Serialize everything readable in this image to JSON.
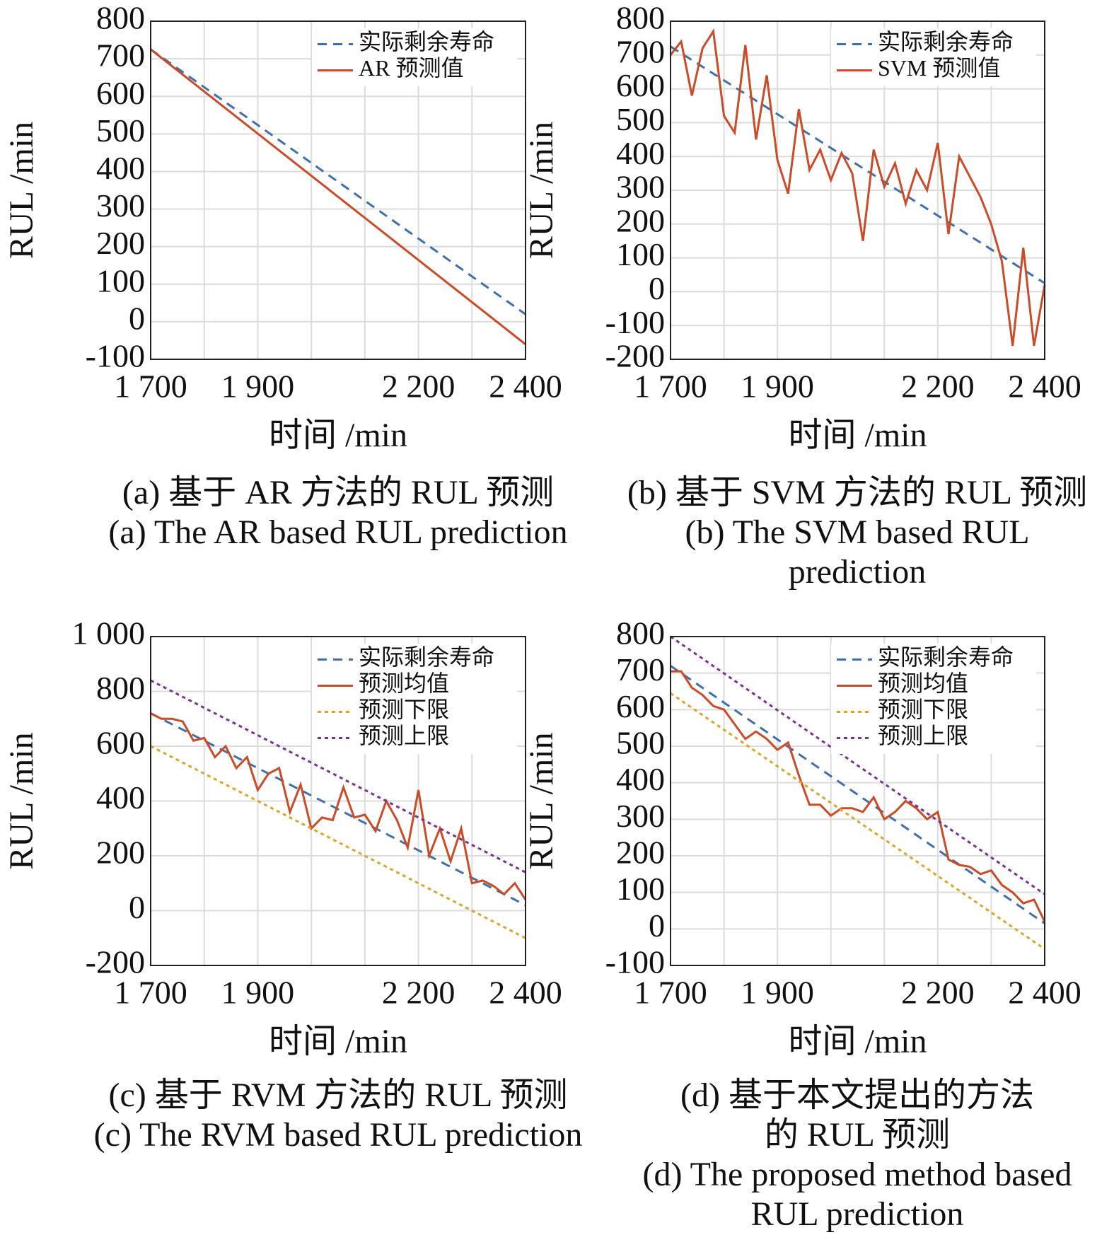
{
  "chart_data": [
    {
      "type": "line",
      "ylabel": "RUL /min",
      "xlabel": "时间 /min",
      "caption": [
        "(a) 基于 AR 方法的 RUL 预测",
        "(a) The AR based RUL prediction"
      ],
      "xlim": [
        1700,
        2400
      ],
      "xticks": [
        {
          "value": 1700,
          "label": "1 700"
        },
        {
          "value": 1900,
          "label": "1 900"
        },
        {
          "value": 2200,
          "label": "2 200"
        },
        {
          "value": 2400,
          "label": "2 400"
        }
      ],
      "xminor": [
        1800,
        2000,
        2100,
        2300
      ],
      "ylim": [
        -100,
        800
      ],
      "yticks": [
        -100,
        0,
        100,
        200,
        300,
        400,
        500,
        600,
        700,
        800
      ],
      "grid": true,
      "legend": "upper right",
      "series": [
        {
          "name": "实际剩余寿命",
          "color": "#3f6fae",
          "dash": "dashed",
          "x": [
            1700,
            2400
          ],
          "values": [
            725,
            20
          ]
        },
        {
          "name": "AR 预测值",
          "color": "#cc4a26",
          "dash": "solid",
          "x": [
            1700,
            2400
          ],
          "values": [
            725,
            -60
          ]
        }
      ]
    },
    {
      "type": "line",
      "ylabel": "RUL /min",
      "xlabel": "时间 /min",
      "caption": [
        "(b) 基于 SVM 方法的 RUL 预测",
        "(b) The SVM based RUL",
        "prediction"
      ],
      "xlim": [
        1700,
        2400
      ],
      "xticks": [
        {
          "value": 1700,
          "label": "1 700"
        },
        {
          "value": 1900,
          "label": "1 900"
        },
        {
          "value": 2200,
          "label": "2 200"
        },
        {
          "value": 2400,
          "label": "2 400"
        }
      ],
      "xminor": [
        1800,
        2000,
        2100,
        2300
      ],
      "ylim": [
        -200,
        800
      ],
      "yticks": [
        -200,
        -100,
        0,
        100,
        200,
        300,
        400,
        500,
        600,
        700,
        800
      ],
      "grid": true,
      "legend": "upper right",
      "series": [
        {
          "name": "实际剩余寿命",
          "color": "#3f6fae",
          "dash": "dashed",
          "x": [
            1700,
            2400
          ],
          "values": [
            725,
            25
          ]
        },
        {
          "name": "SVM 预测值",
          "color": "#cc4a26",
          "dash": "solid",
          "x": [
            1700,
            1720,
            1740,
            1760,
            1780,
            1800,
            1820,
            1840,
            1860,
            1880,
            1900,
            1920,
            1940,
            1960,
            1980,
            2000,
            2020,
            2040,
            2060,
            2080,
            2100,
            2120,
            2140,
            2160,
            2180,
            2200,
            2220,
            2240,
            2260,
            2280,
            2300,
            2320,
            2340,
            2360,
            2380,
            2400
          ],
          "values": [
            700,
            740,
            580,
            720,
            770,
            520,
            470,
            730,
            450,
            640,
            390,
            290,
            540,
            360,
            420,
            330,
            410,
            350,
            150,
            420,
            310,
            380,
            260,
            360,
            300,
            440,
            170,
            400,
            340,
            280,
            200,
            90,
            -160,
            130,
            -160,
            20
          ]
        }
      ]
    },
    {
      "type": "line",
      "ylabel": "RUL /min",
      "xlabel": "时间 /min",
      "caption": [
        "(c) 基于 RVM 方法的 RUL 预测",
        "(c) The RVM based RUL prediction"
      ],
      "xlim": [
        1700,
        2400
      ],
      "xticks": [
        {
          "value": 1700,
          "label": "1 700"
        },
        {
          "value": 1900,
          "label": "1 900"
        },
        {
          "value": 2200,
          "label": "2 200"
        },
        {
          "value": 2400,
          "label": "2 400"
        }
      ],
      "xminor": [
        1800,
        2000,
        2100,
        2300
      ],
      "ylim": [
        -200,
        1000
      ],
      "yticks": [
        -200,
        0,
        200,
        400,
        600,
        800,
        {
          "value": 1000,
          "label": "1 000"
        }
      ],
      "grid": true,
      "legend": "upper right",
      "series": [
        {
          "name": "实际剩余寿命",
          "color": "#3f6fae",
          "dash": "dashed",
          "x": [
            1700,
            2400
          ],
          "values": [
            720,
            20
          ]
        },
        {
          "name": "预测均值",
          "color": "#cc4a26",
          "dash": "solid",
          "x": [
            1700,
            1720,
            1740,
            1760,
            1780,
            1800,
            1820,
            1840,
            1860,
            1880,
            1900,
            1920,
            1940,
            1960,
            1980,
            2000,
            2020,
            2040,
            2060,
            2080,
            2100,
            2120,
            2140,
            2160,
            2180,
            2200,
            2220,
            2240,
            2260,
            2280,
            2300,
            2320,
            2340,
            2360,
            2380,
            2400
          ],
          "values": [
            720,
            700,
            700,
            690,
            620,
            630,
            560,
            600,
            520,
            560,
            440,
            500,
            520,
            360,
            460,
            300,
            340,
            330,
            450,
            340,
            350,
            290,
            400,
            330,
            230,
            440,
            200,
            300,
            180,
            300,
            100,
            110,
            90,
            60,
            100,
            40
          ]
        },
        {
          "name": "预测下限",
          "color": "#d9a52a",
          "dash": "dotted",
          "x": [
            1700,
            2400
          ],
          "values": [
            600,
            -100
          ]
        },
        {
          "name": "预测上限",
          "color": "#7b3294",
          "dash": "dotted",
          "x": [
            1700,
            2400
          ],
          "values": [
            840,
            140
          ]
        }
      ]
    },
    {
      "type": "line",
      "ylabel": "RUL /min",
      "xlabel": "时间 /min",
      "caption": [
        "(d) 基于本文提出的方法",
        "的 RUL 预测",
        "(d) The proposed method based",
        "RUL prediction"
      ],
      "xlim": [
        1700,
        2400
      ],
      "xticks": [
        {
          "value": 1700,
          "label": "1 700"
        },
        {
          "value": 1900,
          "label": "1 900"
        },
        {
          "value": 2200,
          "label": "2 200"
        },
        {
          "value": 2400,
          "label": "2 400"
        }
      ],
      "xminor": [
        1800,
        2000,
        2100,
        2300
      ],
      "ylim": [
        -100,
        800
      ],
      "yticks": [
        -100,
        0,
        100,
        200,
        300,
        400,
        500,
        600,
        700,
        800
      ],
      "grid": true,
      "legend": "upper right",
      "series": [
        {
          "name": "实际剩余寿命",
          "color": "#3f6fae",
          "dash": "dashed",
          "x": [
            1700,
            2400
          ],
          "values": [
            720,
            15
          ]
        },
        {
          "name": "预测均值",
          "color": "#cc4a26",
          "dash": "solid",
          "x": [
            1700,
            1720,
            1740,
            1760,
            1780,
            1800,
            1820,
            1840,
            1860,
            1880,
            1900,
            1920,
            1940,
            1960,
            1980,
            2000,
            2020,
            2040,
            2060,
            2080,
            2100,
            2120,
            2140,
            2160,
            2180,
            2200,
            2220,
            2240,
            2260,
            2280,
            2300,
            2320,
            2340,
            2360,
            2380,
            2400
          ],
          "values": [
            705,
            705,
            660,
            640,
            610,
            600,
            560,
            520,
            540,
            520,
            490,
            510,
            420,
            340,
            340,
            310,
            330,
            330,
            320,
            360,
            300,
            320,
            350,
            330,
            300,
            320,
            190,
            175,
            170,
            150,
            160,
            120,
            100,
            70,
            80,
            20
          ]
        },
        {
          "name": "预测下限",
          "color": "#d9a52a",
          "dash": "dotted",
          "x": [
            1700,
            2400
          ],
          "values": [
            645,
            -55
          ]
        },
        {
          "name": "预测上限",
          "color": "#7b3294",
          "dash": "dotted",
          "x": [
            1700,
            2400
          ],
          "values": [
            800,
            95
          ]
        }
      ]
    }
  ]
}
